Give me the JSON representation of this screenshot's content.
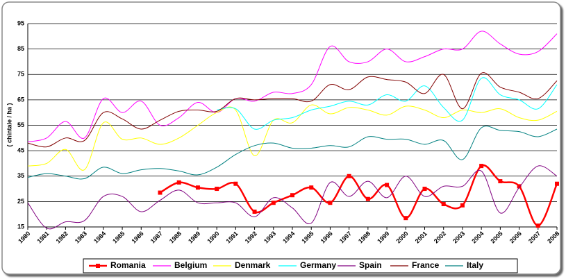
{
  "chart_data": {
    "type": "line",
    "y_label": "( chintale / ha )",
    "categories": [
      "1980",
      "1981",
      "1982",
      "1983",
      "1984",
      "1985",
      "1986",
      "1987",
      "1988",
      "1989",
      "1990",
      "1991",
      "1992",
      "1993",
      "1994",
      "1995",
      "1996",
      "1997",
      "1998",
      "1999",
      "2000",
      "2001",
      "2002",
      "2003",
      "2004",
      "2005",
      "2006",
      "2007",
      "2008"
    ],
    "ylim": [
      15,
      95
    ],
    "yticks": [
      15,
      25,
      35,
      45,
      55,
      65,
      75,
      85,
      95
    ],
    "grid": true,
    "legend": "bottom",
    "series": [
      {
        "name": "Romania",
        "color": "#ff0000",
        "marker": "square",
        "values": [
          null,
          null,
          null,
          null,
          null,
          null,
          null,
          28.5,
          32.5,
          30.5,
          30,
          32,
          21,
          24.5,
          27.5,
          30.5,
          24.5,
          35,
          26,
          31.5,
          18.5,
          30,
          24,
          23.5,
          39,
          33,
          31,
          15.5,
          32
        ]
      },
      {
        "name": "Belgium",
        "color": "#ff00ff",
        "values": [
          48.5,
          50,
          56.5,
          50,
          65.5,
          60,
          64.5,
          55,
          58,
          64,
          60,
          65.5,
          64.5,
          68,
          67.5,
          71,
          86,
          80,
          80,
          85,
          80,
          82,
          85,
          85,
          92,
          87,
          83,
          84,
          91
        ]
      },
      {
        "name": "Denmark",
        "color": "#ffff00",
        "values": [
          39,
          40,
          45.5,
          37.5,
          56,
          49.5,
          50,
          47.5,
          50,
          55,
          60,
          61,
          43,
          57,
          56,
          63,
          59.5,
          62,
          61,
          59,
          62.5,
          61,
          58,
          61,
          60,
          61.5,
          58,
          57,
          60.5
        ]
      },
      {
        "name": "Germany",
        "color": "#00ffff",
        "values": [
          null,
          null,
          null,
          null,
          null,
          null,
          null,
          null,
          null,
          null,
          61,
          61.5,
          53.5,
          57,
          58,
          61,
          62.5,
          64.5,
          63,
          67,
          64.5,
          70.5,
          62,
          57,
          73.5,
          67,
          65,
          61.5,
          71
        ]
      },
      {
        "name": "Spain",
        "color": "#800080",
        "values": [
          24.5,
          14.5,
          17,
          17.5,
          27,
          27,
          21,
          25.5,
          29.5,
          24.5,
          24.5,
          24.5,
          19,
          26.5,
          22.5,
          16.5,
          32.5,
          27,
          33,
          26.5,
          35,
          27,
          31,
          31,
          37,
          20.5,
          30.5,
          39,
          35
        ]
      },
      {
        "name": "France",
        "color": "#800000",
        "values": [
          48,
          46.5,
          50,
          49,
          60,
          57.5,
          53.5,
          57,
          60.5,
          61,
          60.5,
          65.5,
          65,
          65.5,
          65.5,
          64.5,
          71,
          69,
          74,
          73,
          72,
          67.5,
          75,
          61.5,
          75.5,
          70,
          68,
          65.5,
          72.5
        ]
      },
      {
        "name": "Italy",
        "color": "#008080",
        "values": [
          34.5,
          36,
          35,
          34,
          38.5,
          36,
          37.5,
          38,
          37,
          35.5,
          38.5,
          43.5,
          47,
          48,
          46,
          46,
          47,
          46.5,
          50.5,
          49.5,
          49.5,
          47.5,
          49,
          41.5,
          54,
          53,
          52.5,
          50.5,
          53.5
        ]
      }
    ]
  }
}
